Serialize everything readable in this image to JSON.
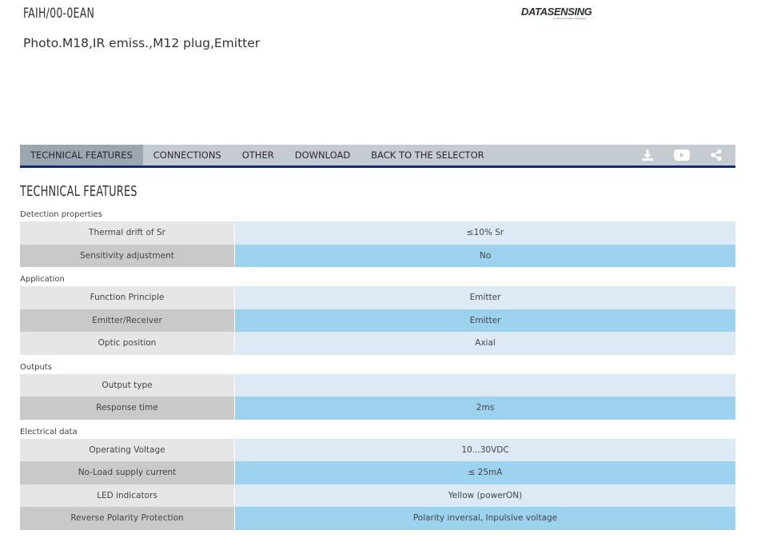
{
  "product": {
    "code": "FAIH/00-0EAN",
    "description": "Photo.M18,IR emiss.,M12 plug,Emitter"
  },
  "brand": {
    "logo_text": "DATASENSING",
    "logo_tagline": "sensing automation challenges",
    "accent_color": "#0d2a73"
  },
  "tabs": [
    {
      "label": "TECHNICAL FEATURES",
      "active": true
    },
    {
      "label": "CONNECTIONS",
      "active": false
    },
    {
      "label": "OTHER",
      "active": false
    },
    {
      "label": "DOWNLOAD",
      "active": false
    },
    {
      "label": "BACK TO THE SELECTOR",
      "active": false
    }
  ],
  "tab_icons": [
    "download-icon",
    "youtube-icon",
    "share-icon"
  ],
  "section_title": "TECHNICAL FEATURES",
  "groups": [
    {
      "title": "Detection properties",
      "rows": [
        {
          "label": "Thermal drift of Sr",
          "value": "≤10% Sr"
        },
        {
          "label": "Sensitivity adjustment",
          "value": "No"
        }
      ]
    },
    {
      "title": "Application",
      "rows": [
        {
          "label": "Function Principle",
          "value": "Emitter"
        },
        {
          "label": "Emitter/Receiver",
          "value": "Emitter"
        },
        {
          "label": "Optic position",
          "value": "Axial"
        }
      ]
    },
    {
      "title": "Outputs",
      "rows": [
        {
          "label": "Output type",
          "value": ""
        },
        {
          "label": "Response time",
          "value": "2ms"
        }
      ]
    },
    {
      "title": "Electrical data",
      "rows": [
        {
          "label": "Operating Voltage",
          "value": "10...30VDC"
        },
        {
          "label": "No-Load supply current",
          "value": "≤ 25mA"
        },
        {
          "label": "LED indicators",
          "value": "Yellow (powerON)"
        },
        {
          "label": "Reverse Polarity Protection",
          "value": "Polarity inversal, Inpulsive voltage"
        }
      ]
    }
  ]
}
